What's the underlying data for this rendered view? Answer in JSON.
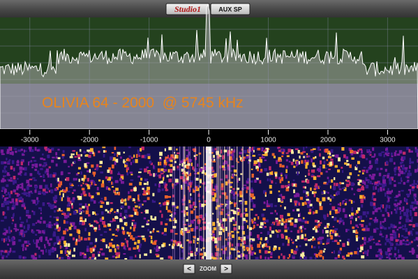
{
  "header": {
    "radio": "Studio1",
    "button": "AUX SP"
  },
  "overlay": "OLIVIA 64 - 2000  @ 5745 kHz",
  "axis": {
    "xlim": [
      -3500,
      3510
    ],
    "ticks": [
      -3000,
      -2000,
      -1000,
      0,
      1000,
      2000,
      3000
    ]
  },
  "zoom": {
    "prev": "<",
    "label": "ZOOM",
    "next": ">"
  }
}
